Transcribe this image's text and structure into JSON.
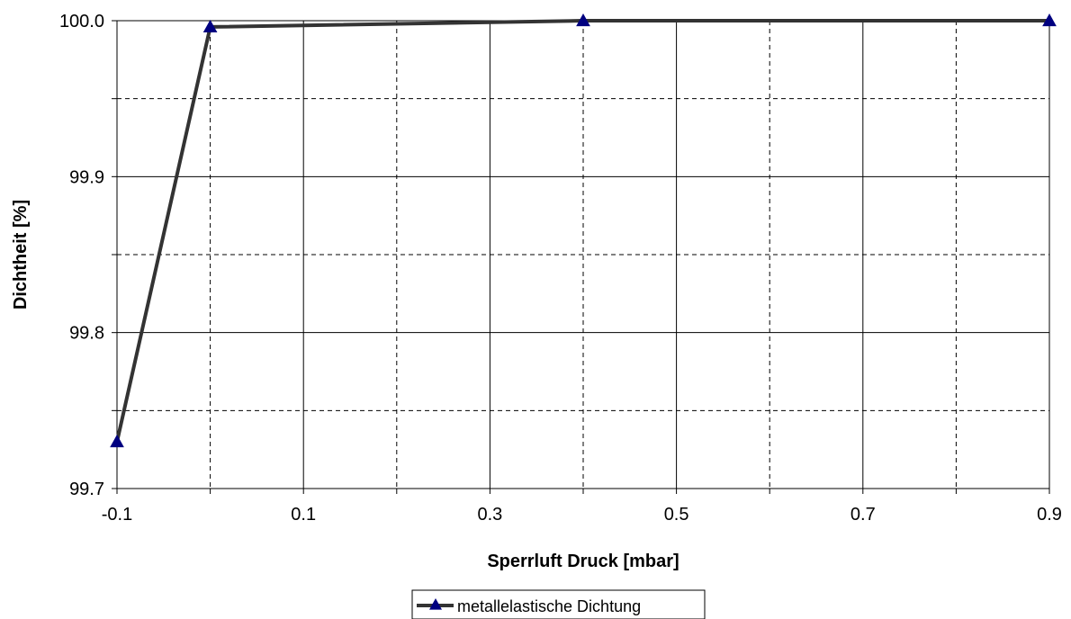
{
  "chart_data": {
    "type": "line",
    "xlabel": "Sperrluft Druck [mbar]",
    "ylabel": "Dichtheit [%]",
    "xlim": [
      -0.1,
      0.9
    ],
    "ylim": [
      99.7,
      100.0
    ],
    "x_tick_labels": [
      "-0.1",
      "0.1",
      "0.3",
      "0.5",
      "0.7",
      "0.9"
    ],
    "y_tick_labels": [
      "99.7",
      "99.8",
      "99.9",
      "100.0"
    ],
    "grid": true,
    "legend_position": "bottom-center",
    "series": [
      {
        "name": "metallelastische Dichtung",
        "color": "#333333",
        "marker": "triangle",
        "marker_color": "#000080",
        "x": [
          -0.1,
          0.0,
          0.4,
          0.9
        ],
        "y": [
          99.73,
          99.996,
          100.0,
          100.0
        ]
      }
    ]
  }
}
